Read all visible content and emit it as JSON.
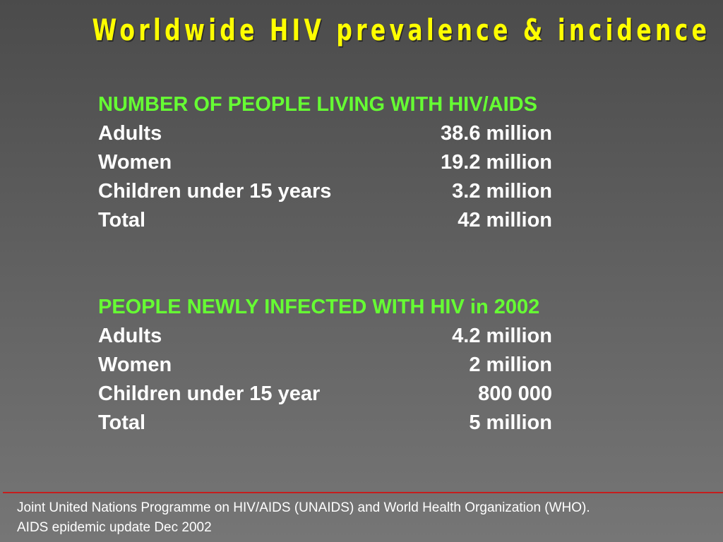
{
  "title": "Worldwide HIV prevalence & incidence",
  "section1": {
    "heading": "NUMBER OF PEOPLE LIVING WITH HIV/AIDS",
    "rows": [
      {
        "label": "Adults",
        "value": "38.6 million"
      },
      {
        "label": "Women",
        "value": "19.2 million"
      },
      {
        "label": "Children under 15 years",
        "value": "3.2 million"
      },
      {
        "label": "Total",
        "value": "42 million"
      }
    ]
  },
  "section2": {
    "heading": "PEOPLE NEWLY INFECTED WITH HIV in 2002",
    "rows": [
      {
        "label": "Adults",
        "value": "4.2 million"
      },
      {
        "label": "Women",
        "value": "2 million"
      },
      {
        "label": "Children under 15 year",
        "value": "800 000"
      },
      {
        "label": "Total",
        "value": "5 million"
      }
    ]
  },
  "source": {
    "line1": "Joint United Nations Programme on HIV/AIDS (UNAIDS) and World Health Organization (WHO).",
    "line2": "AIDS epidemic update Dec 2002"
  },
  "colors": {
    "title": "#ffff00",
    "heading": "#66ff33",
    "body_text": "#ffffff",
    "divider": "#c41e1e"
  }
}
